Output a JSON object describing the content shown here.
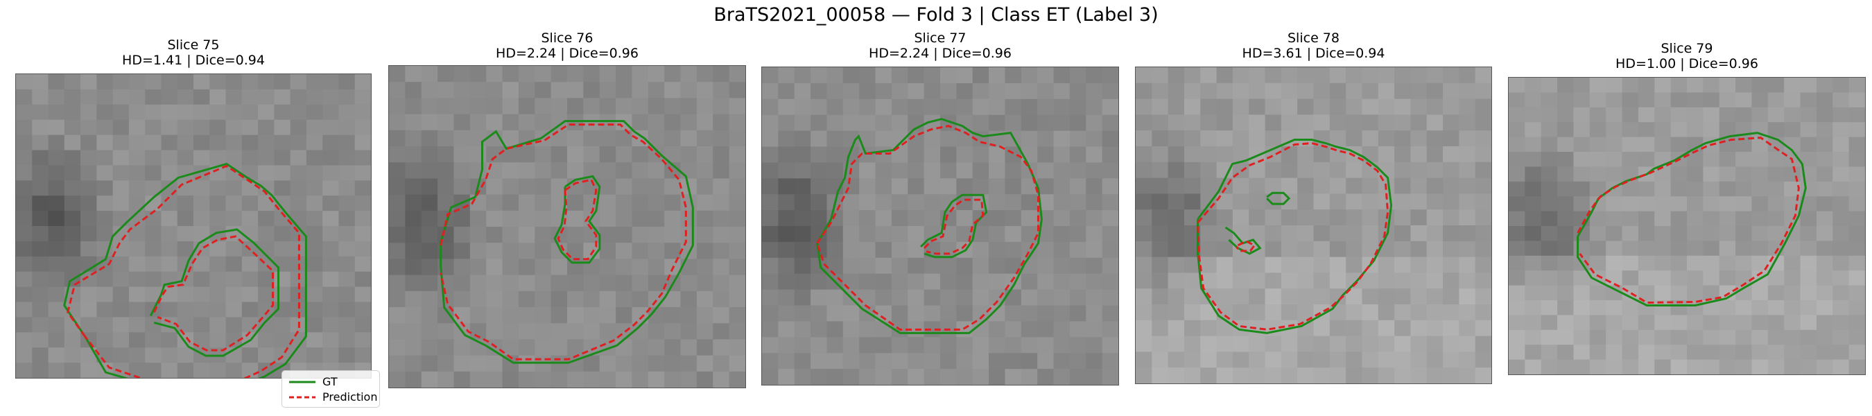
{
  "figure": {
    "title": "BraTS2021_00058 — Fold 3 | Class ET (Label 3)"
  },
  "chart_data": {
    "type": "image_grid",
    "title": "BraTS2021_00058 — Fold 3 | Class ET (Label 3)",
    "legend": {
      "placement": "lower-right",
      "entries": [
        "GT",
        "Prediction"
      ]
    },
    "colors": {
      "gt": "#1a8a1a",
      "prediction": "#e02020",
      "background": "#8e8e8e"
    },
    "panels": [
      {
        "slice": "Slice 75",
        "metrics": "HD=1.41 | Dice=0.94",
        "hd": 1.41,
        "dice": 0.94
      },
      {
        "slice": "Slice 76",
        "metrics": "HD=2.24 | Dice=0.96",
        "hd": 2.24,
        "dice": 0.96
      },
      {
        "slice": "Slice 77",
        "metrics": "HD=2.24 | Dice=0.96",
        "hd": 2.24,
        "dice": 0.96
      },
      {
        "slice": "Slice 78",
        "metrics": "HD=3.61 | Dice=0.94",
        "hd": 3.61,
        "dice": 0.94
      },
      {
        "slice": "Slice 79",
        "metrics": "HD=1.00 | Dice=0.96",
        "hd": 1.0,
        "dice": 0.96
      }
    ]
  }
}
